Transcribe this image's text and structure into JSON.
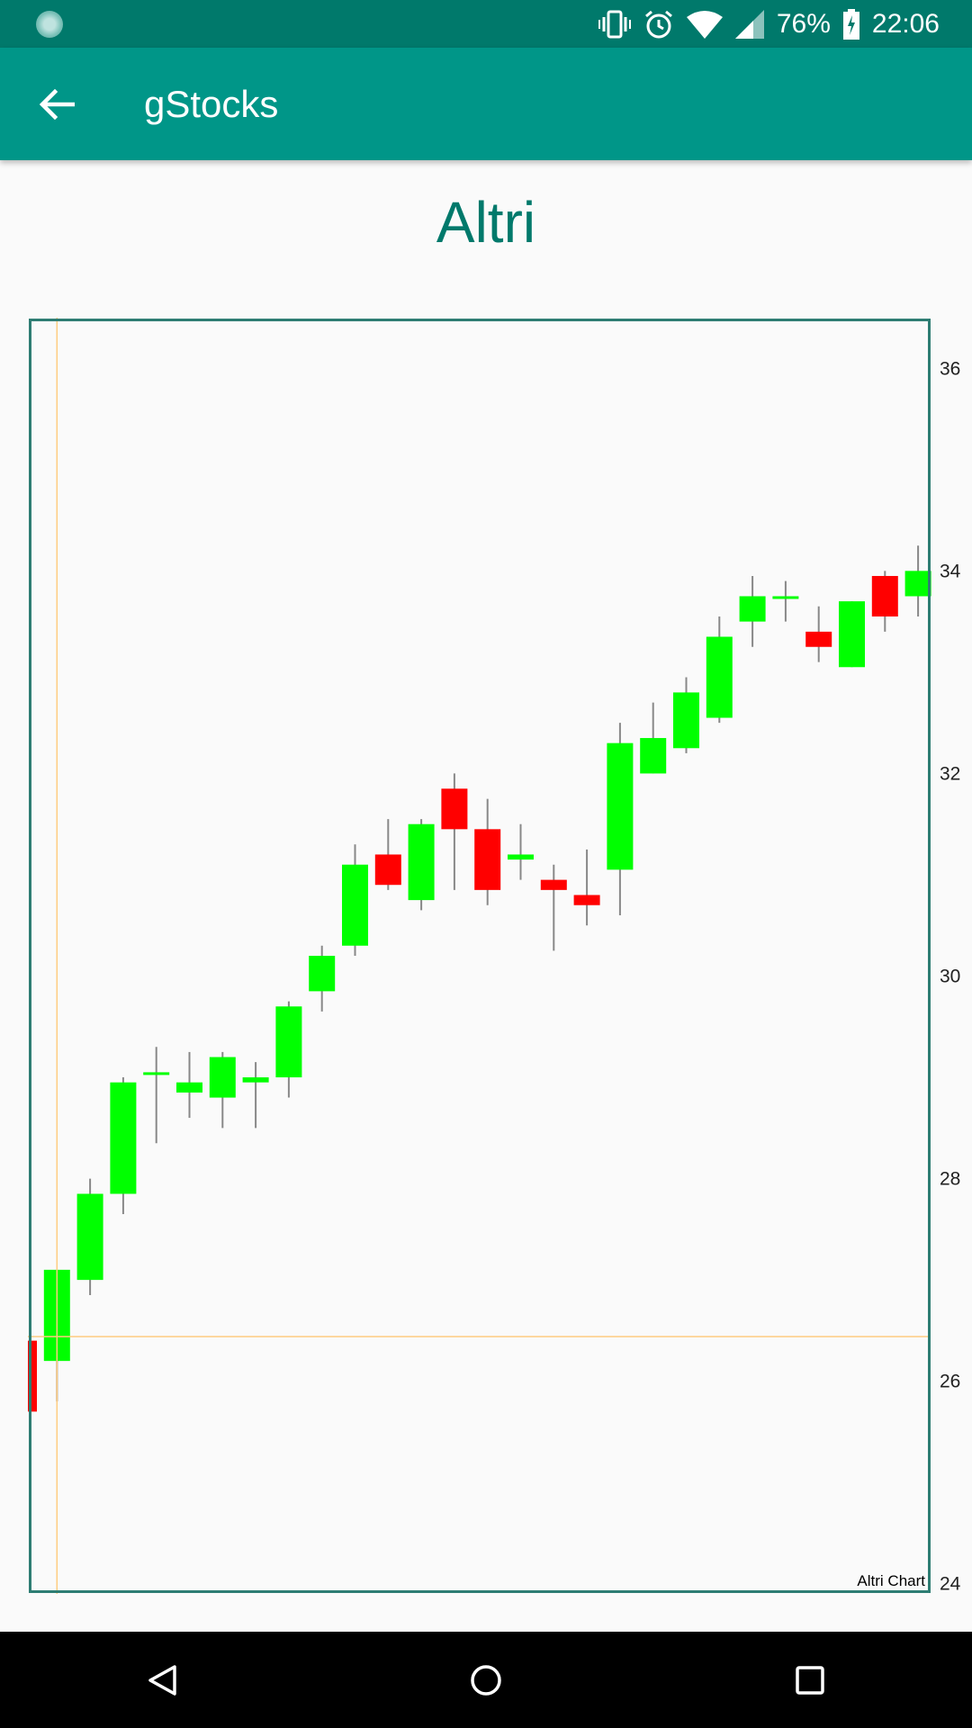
{
  "status_bar": {
    "battery": "76%",
    "time": "22:06",
    "icons": [
      "app-notification-icon",
      "vibrate-icon",
      "alarm-icon",
      "wifi-icon",
      "cell-signal-icon",
      "battery-charging-icon"
    ]
  },
  "toolbar": {
    "title": "gStocks",
    "back_icon": "arrow-left-icon"
  },
  "chart_heading": "Altri",
  "chart_data": {
    "type": "candlestick",
    "title": "Altri",
    "caption": "Altri Chart",
    "ylim": [
      23.9,
      36.5
    ],
    "y_ticks": [
      24,
      26,
      28,
      30,
      32,
      34,
      36
    ],
    "y_tick_labels": [
      "24",
      "26",
      "28",
      "30",
      "32",
      "34",
      "36"
    ],
    "axis_side": "right",
    "crosshair": {
      "candle_index": 1,
      "y": 26.44,
      "color": "#ffcc80"
    },
    "up_color": "#00ff00",
    "down_color": "#ff0000",
    "wick_color": "#888888",
    "frame_color": "#2e7d73",
    "candles": [
      {
        "o": 26.4,
        "h": 26.45,
        "l": 25.6,
        "c": 25.7
      },
      {
        "o": 26.2,
        "h": 27.1,
        "l": 25.8,
        "c": 27.1
      },
      {
        "o": 27.0,
        "h": 28.0,
        "l": 26.85,
        "c": 27.85
      },
      {
        "o": 27.85,
        "h": 29.0,
        "l": 27.65,
        "c": 28.95
      },
      {
        "o": 29.05,
        "h": 29.3,
        "l": 28.35,
        "c": 29.05
      },
      {
        "o": 28.85,
        "h": 29.25,
        "l": 28.6,
        "c": 28.95
      },
      {
        "o": 28.8,
        "h": 29.25,
        "l": 28.5,
        "c": 29.2
      },
      {
        "o": 28.95,
        "h": 29.15,
        "l": 28.5,
        "c": 29.0
      },
      {
        "o": 29.0,
        "h": 29.75,
        "l": 28.8,
        "c": 29.7
      },
      {
        "o": 29.85,
        "h": 30.3,
        "l": 29.65,
        "c": 30.2
      },
      {
        "o": 30.3,
        "h": 31.3,
        "l": 30.2,
        "c": 31.1
      },
      {
        "o": 31.2,
        "h": 31.55,
        "l": 30.85,
        "c": 30.9
      },
      {
        "o": 30.75,
        "h": 31.55,
        "l": 30.65,
        "c": 31.5
      },
      {
        "o": 31.85,
        "h": 32.0,
        "l": 30.85,
        "c": 31.45
      },
      {
        "o": 31.45,
        "h": 31.75,
        "l": 30.7,
        "c": 30.85
      },
      {
        "o": 31.15,
        "h": 31.5,
        "l": 30.95,
        "c": 31.2
      },
      {
        "o": 30.95,
        "h": 31.1,
        "l": 30.25,
        "c": 30.85
      },
      {
        "o": 30.8,
        "h": 31.25,
        "l": 30.5,
        "c": 30.7
      },
      {
        "o": 31.05,
        "h": 32.5,
        "l": 30.6,
        "c": 32.3
      },
      {
        "o": 32.0,
        "h": 32.7,
        "l": 32.0,
        "c": 32.35
      },
      {
        "o": 32.25,
        "h": 32.95,
        "l": 32.2,
        "c": 32.8
      },
      {
        "o": 32.55,
        "h": 33.55,
        "l": 32.5,
        "c": 33.35
      },
      {
        "o": 33.5,
        "h": 33.95,
        "l": 33.25,
        "c": 33.75
      },
      {
        "o": 33.75,
        "h": 33.9,
        "l": 33.5,
        "c": 33.75
      },
      {
        "o": 33.4,
        "h": 33.65,
        "l": 33.1,
        "c": 33.25
      },
      {
        "o": 33.05,
        "h": 33.7,
        "l": 33.05,
        "c": 33.7
      },
      {
        "o": 33.95,
        "h": 34.0,
        "l": 33.4,
        "c": 33.55
      },
      {
        "o": 33.75,
        "h": 34.25,
        "l": 33.55,
        "c": 34.0
      }
    ]
  },
  "nav_bar": {
    "icons": [
      "back-triangle-icon",
      "home-circle-icon",
      "recents-square-icon"
    ]
  }
}
